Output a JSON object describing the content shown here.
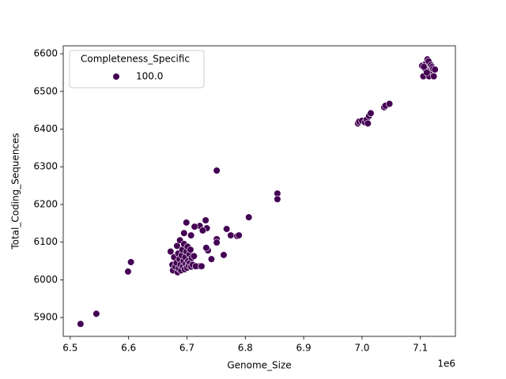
{
  "chart_data": {
    "type": "scatter",
    "xlabel": "Genome_Size",
    "ylabel": "Total_Coding_Sequences",
    "x_offset_label": "1e6",
    "legend_title": "Completeness_Specific",
    "legend": "upper left",
    "xlim": [
      6488000,
      7160000
    ],
    "ylim": [
      5850,
      6621
    ],
    "xticks": [
      {
        "value": 6500000,
        "label": "6.5"
      },
      {
        "value": 6600000,
        "label": "6.6"
      },
      {
        "value": 6700000,
        "label": "6.7"
      },
      {
        "value": 6800000,
        "label": "6.8"
      },
      {
        "value": 6900000,
        "label": "6.9"
      },
      {
        "value": 7000000,
        "label": "7.0"
      },
      {
        "value": 7100000,
        "label": "7.1"
      }
    ],
    "yticks": [
      5900,
      6000,
      6100,
      6200,
      6300,
      6400,
      6500,
      6600
    ],
    "series": [
      {
        "name": "100.0",
        "color": "#440154",
        "x": [
          6517600,
          6544700,
          6599000,
          6604000,
          6751000,
          6855000,
          6855000,
          6806000,
          6699000,
          6732000,
          6722000,
          6713000,
          6734000,
          6768000,
          6727000,
          6695000,
          6707000,
          6775000,
          6786000,
          6789000,
          6751000,
          6751000,
          6763000,
          6742000,
          6736000,
          6733000,
          6721000,
          6672000,
          6675000,
          6676000,
          6678000,
          6680000,
          6682000,
          6683000,
          6684000,
          6685000,
          6686000,
          6687000,
          6688000,
          6689000,
          6690000,
          6691000,
          6692000,
          6693000,
          6694000,
          6695000,
          6696000,
          6697000,
          6698000,
          6699000,
          6700000,
          6701000,
          6702000,
          6703000,
          6704000,
          6705000,
          6706000,
          6707000,
          6708000,
          6710000,
          6712000,
          6715000,
          6725000,
          6993000,
          6995000,
          7000000,
          7005000,
          7008000,
          7010000,
          7012000,
          7015000,
          7038000,
          7040000,
          7047000,
          7103000,
          7105000,
          7108000,
          7110000,
          7112000,
          7114000,
          7115000,
          7117000,
          7118000,
          7120000,
          7122000,
          7123000,
          7125000,
          7106000,
          7111000
        ],
        "values": [
          5883,
          5910,
          6022,
          6047,
          6290,
          6229,
          6214,
          6166,
          6152,
          6158,
          6143,
          6141,
          6137,
          6135,
          6131,
          6124,
          6118,
          6118,
          6116,
          6118,
          6108,
          6099,
          6066,
          6055,
          6078,
          6085,
          6036,
          6075,
          6040,
          6025,
          6060,
          6035,
          6045,
          6090,
          6020,
          6070,
          6030,
          6055,
          6105,
          6040,
          6025,
          6065,
          6080,
          6035,
          6050,
          6095,
          6028,
          6060,
          6042,
          6075,
          6032,
          6088,
          6050,
          6038,
          6068,
          6045,
          6080,
          6035,
          6058,
          6040,
          6063,
          6036,
          6036,
          6415,
          6420,
          6422,
          6418,
          6425,
          6415,
          6435,
          6442,
          6458,
          6462,
          6467,
          6568,
          6540,
          6560,
          6575,
          6585,
          6580,
          6540,
          6555,
          6570,
          6565,
          6560,
          6540,
          6558,
          6565,
          6550
        ]
      }
    ]
  }
}
